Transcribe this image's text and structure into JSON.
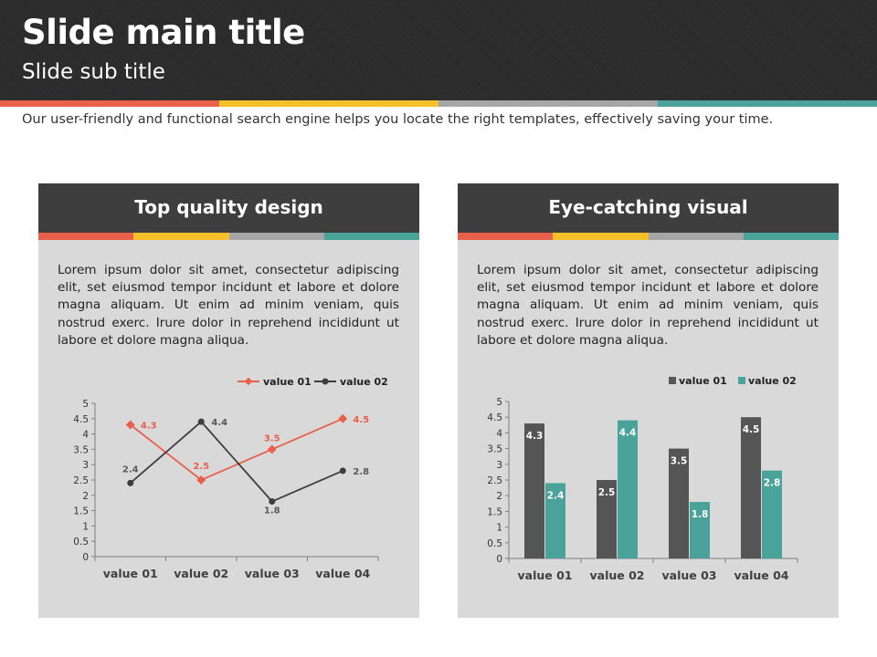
{
  "header": {
    "title": "Slide main title",
    "subtitle": "Slide sub title"
  },
  "colors": {
    "red": "#e8604a",
    "yellow": "#f5c02a",
    "gray": "#a6a6a6",
    "teal": "#4aa39b",
    "dark": "#3e3e3e",
    "panel_bg": "#d9d9d9",
    "header_bg": "#2b2b2b"
  },
  "intro": "Our user-friendly and functional search engine helps you locate the right templates, effectively saving your time.",
  "panels": [
    {
      "title": "Top quality design",
      "body": "Lorem ipsum dolor sit amet, consectetur adipiscing elit, set eiusmod tempor incidunt et labore et dolore magna aliquam. Ut enim ad minim veniam, quis nostrud exerc. Irure dolor in reprehend incididunt ut labore et dolore magna aliqua."
    },
    {
      "title": "Eye-catching visual",
      "body": "Lorem ipsum dolor sit amet, consectetur adipiscing elit, set eiusmod tempor incidunt et labore et dolore magna aliquam. Ut enim ad minim veniam, quis nostrud exerc. Irure dolor in reprehend incididunt ut labore et dolore magna aliqua."
    }
  ],
  "chart_data": [
    {
      "type": "line",
      "categories": [
        "value 01",
        "value 02",
        "value 03",
        "value 04"
      ],
      "series": [
        {
          "name": "value 01",
          "values": [
            4.3,
            2.5,
            3.5,
            4.5
          ],
          "color": "#e8604a"
        },
        {
          "name": "value 02",
          "values": [
            2.4,
            4.4,
            1.8,
            2.8
          ],
          "color": "#3e3e3e"
        }
      ],
      "ylim": [
        0,
        5
      ],
      "yticks": [
        "0",
        "0.5",
        "1",
        "1.5",
        "2",
        "2.5",
        "3",
        "3.5",
        "4",
        "4.5",
        "5"
      ],
      "legend": "top-right",
      "grid": false
    },
    {
      "type": "bar",
      "categories": [
        "value 01",
        "value 02",
        "value 03",
        "value 04"
      ],
      "series": [
        {
          "name": "value 01",
          "values": [
            4.3,
            2.5,
            3.5,
            4.5
          ],
          "color": "#555555"
        },
        {
          "name": "value 02",
          "values": [
            2.4,
            4.4,
            1.8,
            2.8
          ],
          "color": "#4aa39b"
        }
      ],
      "ylim": [
        0,
        5
      ],
      "yticks": [
        "0",
        "0.5",
        "1",
        "1.5",
        "2",
        "2.5",
        "3",
        "3.5",
        "4",
        "4.5",
        "5"
      ],
      "legend": "top-right",
      "grid": false
    }
  ]
}
